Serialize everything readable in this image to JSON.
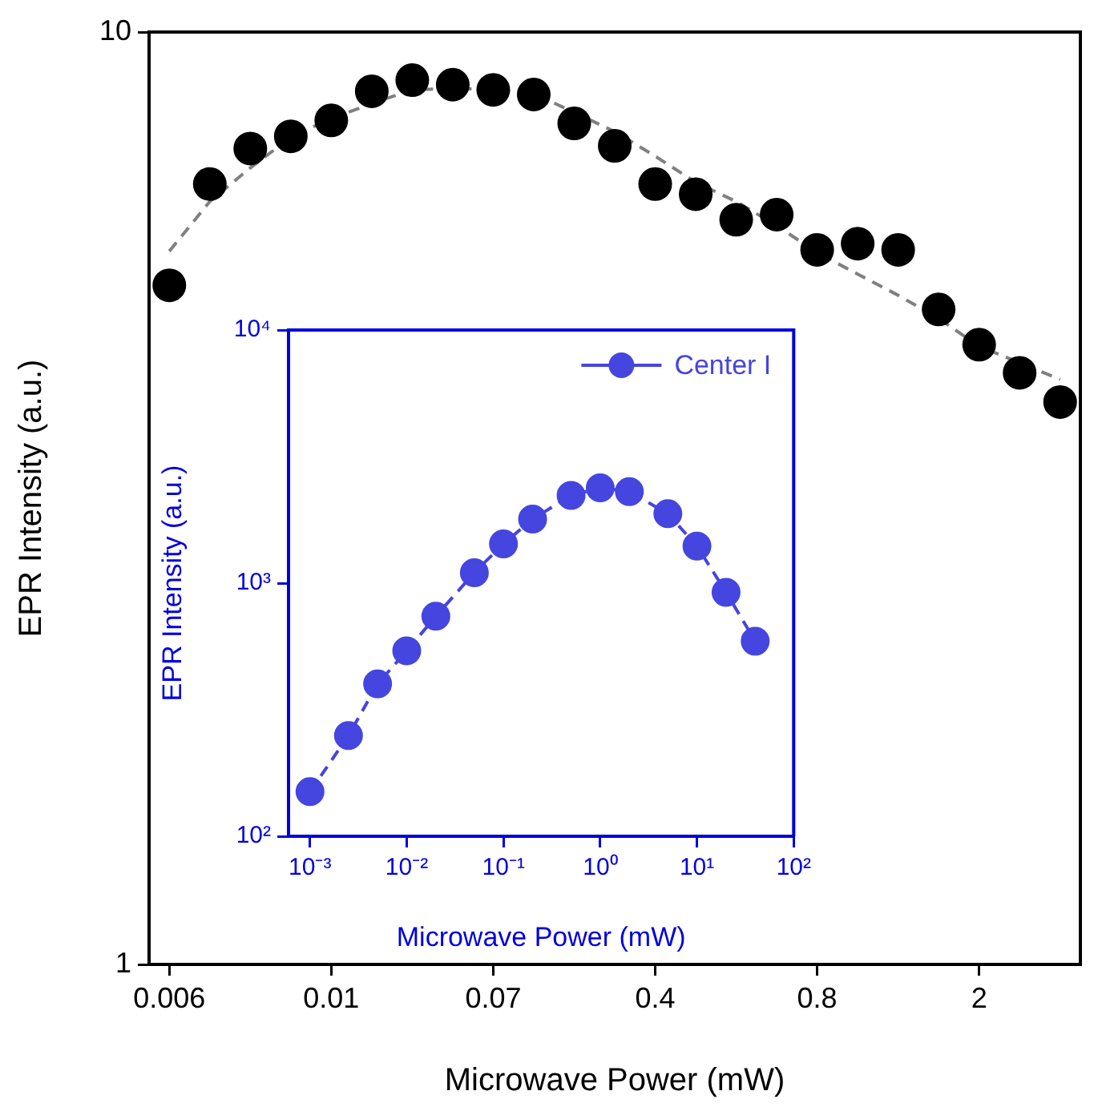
{
  "chart_data": [
    {
      "type": "scatter",
      "xlabel": "Microwave Power (mW)",
      "ylabel": "EPR Intensity (a.u.)",
      "log": "y",
      "marker": "circle",
      "grid": false,
      "legend": false,
      "categories": [
        "0.006",
        null,
        null,
        null,
        "0.01",
        null,
        null,
        null,
        "0.07",
        null,
        null,
        null,
        "0.4",
        null,
        null,
        null,
        "0.8",
        null,
        null,
        null,
        "2",
        null,
        null
      ],
      "ylim": [
        1,
        10
      ],
      "yticks": [
        1,
        10
      ],
      "series": [
        {
          "type": "scatter",
          "color": "#000000",
          "values": [
            5.35,
            6.87,
            7.5,
            7.73,
            8.04,
            8.64,
            8.88,
            8.78,
            8.67,
            8.57,
            7.98,
            7.55,
            6.87,
            6.7,
            6.29,
            6.37,
            5.84,
            5.93,
            5.84,
            5.04,
            4.62,
            4.31,
            4.01
          ]
        },
        {
          "type": "line",
          "color": "#808080",
          "line_style": "dashed",
          "marker": "none",
          "values": [
            5.82,
            6.58,
            7.15,
            7.71,
            8.08,
            8.38,
            8.67,
            8.7,
            8.68,
            8.59,
            8.2,
            7.82,
            7.36,
            6.9,
            6.58,
            6.2,
            5.8,
            5.5,
            5.22,
            4.93,
            4.6,
            4.42,
            4.24
          ]
        }
      ]
    },
    {
      "type": "line",
      "xlabel": "Microwave Power (mW)",
      "ylabel": "EPR Intensity (a.u.)",
      "log": "xy",
      "marker": "circle",
      "line_style": "dashed",
      "grid": false,
      "legend": "top right",
      "xlim": [
        0.00061,
        100
      ],
      "xticks": [
        {
          "value": 0.001,
          "label": "10⁻³"
        },
        {
          "value": 0.01,
          "label": "10⁻²"
        },
        {
          "value": 0.1,
          "label": "10⁻¹"
        },
        {
          "value": 1,
          "label": "10⁰"
        },
        {
          "value": 10,
          "label": "10¹"
        },
        {
          "value": 100,
          "label": "10²"
        }
      ],
      "ylim": [
        100,
        10000
      ],
      "yticks": [
        {
          "value": 100,
          "label": "10²"
        },
        {
          "value": 1000,
          "label": "10³"
        },
        {
          "value": 10000,
          "label": "10⁴"
        }
      ],
      "x": [
        0.001,
        0.0025,
        0.005,
        0.01,
        0.02,
        0.05,
        0.1,
        0.2,
        0.5,
        1,
        2,
        5,
        10,
        20,
        40
      ],
      "series": [
        {
          "name": "Center I",
          "color": "#4545e0",
          "values": [
            150,
            250,
            400,
            540,
            740,
            1100,
            1430,
            1790,
            2220,
            2380,
            2300,
            1880,
            1400,
            920,
            590
          ]
        }
      ]
    }
  ]
}
